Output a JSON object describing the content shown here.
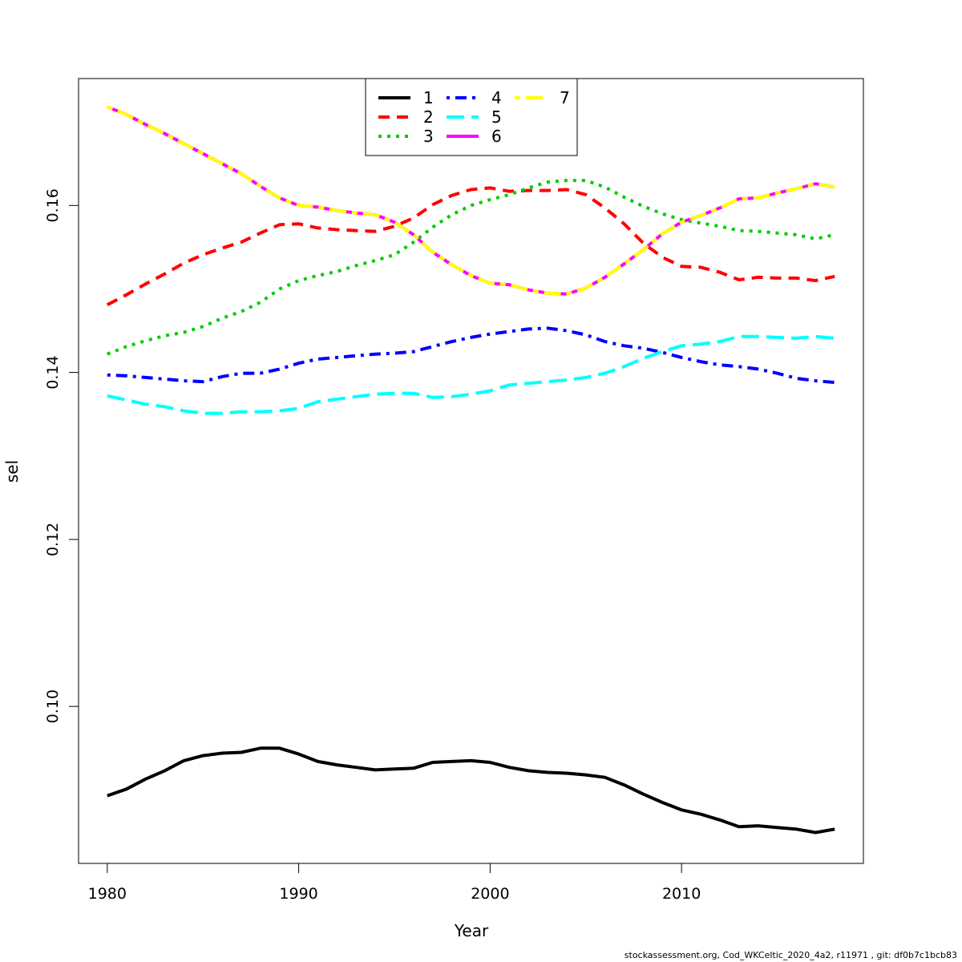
{
  "chart_data": {
    "type": "line",
    "xlabel": "Year",
    "ylabel": "sel",
    "xlim": [
      1978.5,
      2019.5
    ],
    "ylim": [
      0.0812,
      0.1752
    ],
    "xticks": [
      1980,
      1990,
      2000,
      2010
    ],
    "yticks": [
      0.1,
      0.12,
      0.14,
      0.16
    ],
    "ytick_labels": [
      "0.10",
      "0.12",
      "0.14",
      "0.16"
    ],
    "legend_position": "top-center",
    "legend_columns": 3,
    "x": [
      1980,
      1981,
      1982,
      1983,
      1984,
      1985,
      1986,
      1987,
      1988,
      1989,
      1990,
      1991,
      1992,
      1993,
      1994,
      1995,
      1996,
      1997,
      1998,
      1999,
      2000,
      2001,
      2002,
      2003,
      2004,
      2005,
      2006,
      2007,
      2008,
      2009,
      2010,
      2011,
      2012,
      2013,
      2014,
      2015,
      2016,
      2017,
      2018
    ],
    "series": [
      {
        "name": "1",
        "color": "#000000",
        "dash": "solid",
        "values": [
          0.0893,
          0.0901,
          0.0913,
          0.0923,
          0.0935,
          0.0941,
          0.0944,
          0.0945,
          0.095,
          0.095,
          0.0943,
          0.0934,
          0.093,
          0.0927,
          0.0924,
          0.0925,
          0.0926,
          0.0933,
          0.0934,
          0.0935,
          0.0933,
          0.0927,
          0.0923,
          0.0921,
          0.092,
          0.0918,
          0.0915,
          0.0906,
          0.0895,
          0.0885,
          0.0876,
          0.0871,
          0.0864,
          0.0856,
          0.0857,
          0.0855,
          0.0853,
          0.0849,
          0.0853
        ]
      },
      {
        "name": "2",
        "color": "#ff0000",
        "dash": "dashed",
        "values": [
          0.1481,
          0.1493,
          0.1506,
          0.1518,
          0.1531,
          0.1541,
          0.1549,
          0.1556,
          0.1567,
          0.1577,
          0.1578,
          0.1573,
          0.1571,
          0.157,
          0.1569,
          0.1575,
          0.1585,
          0.1601,
          0.1612,
          0.1619,
          0.1621,
          0.1617,
          0.1618,
          0.1618,
          0.1619,
          0.1613,
          0.1597,
          0.1578,
          0.1555,
          0.1538,
          0.1527,
          0.1526,
          0.152,
          0.1511,
          0.1514,
          0.1513,
          0.1513,
          0.151,
          0.1515
        ]
      },
      {
        "name": "3",
        "color": "#00cd00",
        "dash": "dotted",
        "values": [
          0.1422,
          0.1431,
          0.1438,
          0.1444,
          0.1448,
          0.1455,
          0.1465,
          0.1473,
          0.1484,
          0.15,
          0.151,
          0.1516,
          0.1521,
          0.1528,
          0.1534,
          0.1541,
          0.1556,
          0.1574,
          0.1589,
          0.16,
          0.1607,
          0.1613,
          0.1621,
          0.1628,
          0.163,
          0.163,
          0.1622,
          0.161,
          0.1599,
          0.159,
          0.1583,
          0.1579,
          0.1575,
          0.157,
          0.1569,
          0.1567,
          0.1565,
          0.156,
          0.1565
        ]
      },
      {
        "name": "4",
        "color": "#0000ff",
        "dash": "dotdash",
        "values": [
          0.1397,
          0.1396,
          0.1394,
          0.1392,
          0.139,
          0.1389,
          0.1395,
          0.1399,
          0.1399,
          0.1404,
          0.1411,
          0.1416,
          0.1418,
          0.142,
          0.1422,
          0.1423,
          0.1425,
          0.1431,
          0.1437,
          0.1442,
          0.1446,
          0.1449,
          0.1452,
          0.1453,
          0.145,
          0.1445,
          0.1437,
          0.1432,
          0.1429,
          0.1424,
          0.1418,
          0.1413,
          0.1409,
          0.1407,
          0.1404,
          0.1399,
          0.1393,
          0.139,
          0.1388
        ]
      },
      {
        "name": "5",
        "color": "#00ffff",
        "dash": "longdash",
        "values": [
          0.1372,
          0.1367,
          0.1362,
          0.1359,
          0.1354,
          0.1351,
          0.1351,
          0.1353,
          0.1353,
          0.1354,
          0.1357,
          0.1365,
          0.1368,
          0.1371,
          0.1374,
          0.1375,
          0.1375,
          0.137,
          0.1371,
          0.1374,
          0.1378,
          0.1385,
          0.1387,
          0.1389,
          0.1391,
          0.1394,
          0.1399,
          0.1407,
          0.1417,
          0.1425,
          0.1432,
          0.1434,
          0.1437,
          0.1443,
          0.1443,
          0.1442,
          0.1441,
          0.1443,
          0.1441
        ]
      },
      {
        "name": "6",
        "color": "#ff00ff",
        "dash": "solid",
        "values": [
          0.1718,
          0.1709,
          0.1697,
          0.1686,
          0.1674,
          0.1662,
          0.165,
          0.1638,
          0.1623,
          0.1609,
          0.16,
          0.1598,
          0.1594,
          0.1591,
          0.1589,
          0.158,
          0.1565,
          0.1544,
          0.1529,
          0.1516,
          0.1507,
          0.1505,
          0.1499,
          0.1495,
          0.1494,
          0.1501,
          0.1514,
          0.153,
          0.1547,
          0.1566,
          0.158,
          0.1588,
          0.1597,
          0.1608,
          0.1609,
          0.1615,
          0.162,
          0.1626,
          0.1622
        ]
      },
      {
        "name": "7",
        "color": "#ffff00",
        "dash": "twodash",
        "values": [
          0.1718,
          0.1709,
          0.1697,
          0.1686,
          0.1674,
          0.1662,
          0.165,
          0.1638,
          0.1623,
          0.1609,
          0.16,
          0.1598,
          0.1594,
          0.1591,
          0.1589,
          0.158,
          0.1565,
          0.1544,
          0.1529,
          0.1516,
          0.1507,
          0.1505,
          0.1499,
          0.1495,
          0.1494,
          0.1501,
          0.1514,
          0.153,
          0.1547,
          0.1566,
          0.158,
          0.1588,
          0.1597,
          0.1608,
          0.1609,
          0.1615,
          0.162,
          0.1626,
          0.1622
        ]
      }
    ]
  },
  "footer": "stockassessment.org, Cod_WKCeltic_2020_4a2, r11971 , git: df0b7c1bcb83"
}
